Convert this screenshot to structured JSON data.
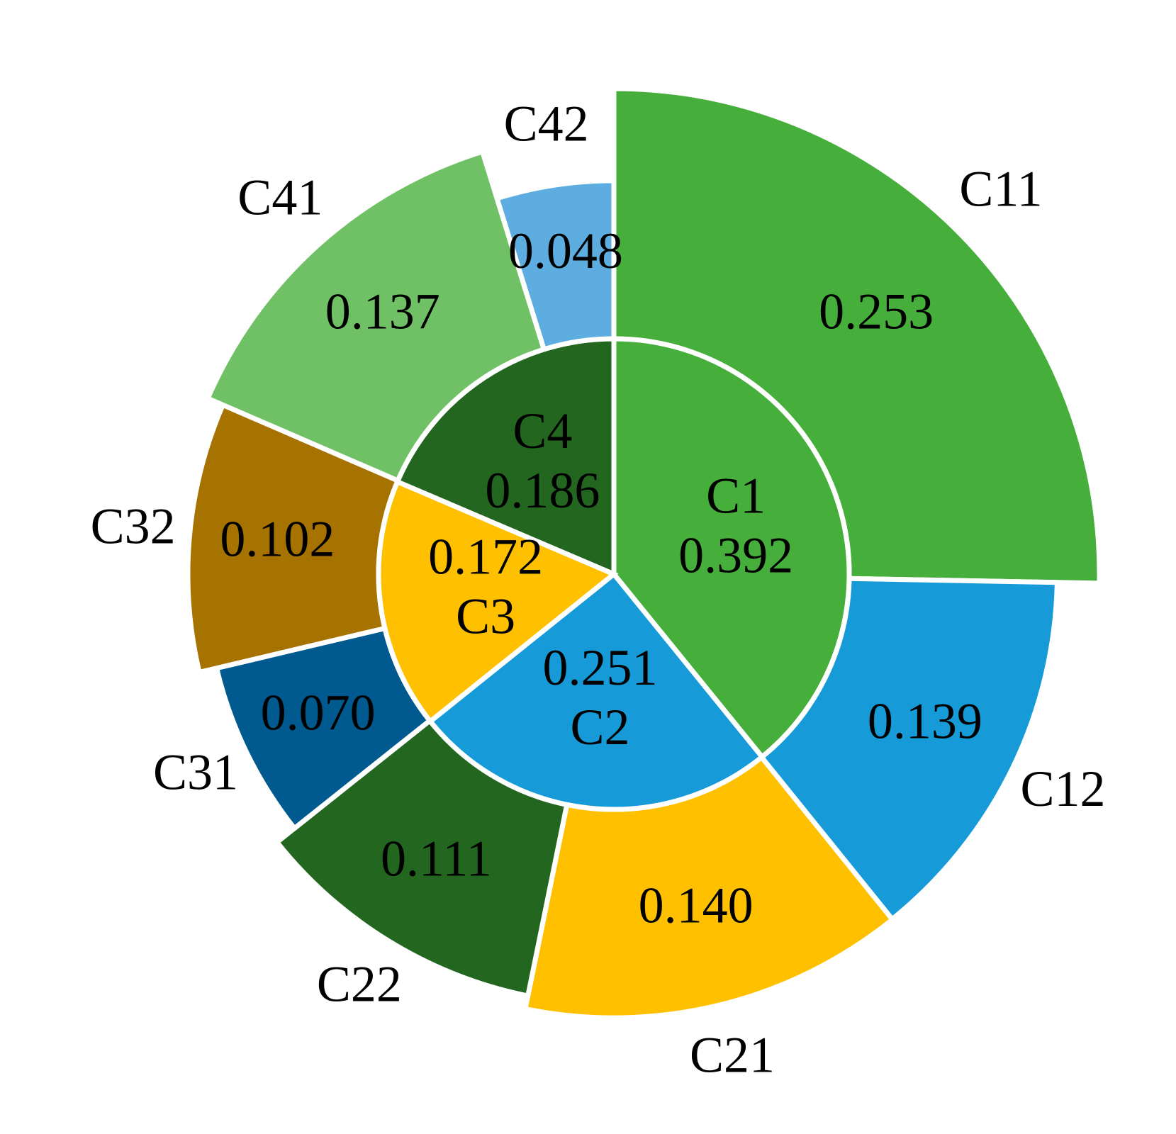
{
  "chart_data": {
    "type": "pie",
    "subtype": "nested-donut",
    "title": "",
    "inner_ring": [
      {
        "label": "C1",
        "value": 0.392,
        "value_text": "0.392",
        "color": "#46AE3B"
      },
      {
        "label": "C2",
        "value": 0.251,
        "value_text": "0.251",
        "color": "#169BD8"
      },
      {
        "label": "C3",
        "value": 0.172,
        "value_text": "0.172",
        "color": "#FFC000"
      },
      {
        "label": "C4",
        "value": 0.186,
        "value_text": "0.186",
        "color": "#23661F"
      }
    ],
    "outer_ring": [
      {
        "label": "C11",
        "value": 0.253,
        "value_text": "0.253",
        "color": "#46AE3B"
      },
      {
        "label": "C12",
        "value": 0.139,
        "value_text": "0.139",
        "color": "#169BD8"
      },
      {
        "label": "C21",
        "value": 0.14,
        "value_text": "0.140",
        "color": "#FFC000"
      },
      {
        "label": "C22",
        "value": 0.111,
        "value_text": "0.111",
        "color": "#23661F"
      },
      {
        "label": "C31",
        "value": 0.07,
        "value_text": "0.070",
        "color": "#005A8F"
      },
      {
        "label": "C32",
        "value": 0.102,
        "value_text": "0.102",
        "color": "#A67200"
      },
      {
        "label": "C41",
        "value": 0.137,
        "value_text": "0.137",
        "color": "#70C166"
      },
      {
        "label": "C42",
        "value": 0.048,
        "value_text": "0.048",
        "color": "#5DADE0"
      }
    ]
  }
}
